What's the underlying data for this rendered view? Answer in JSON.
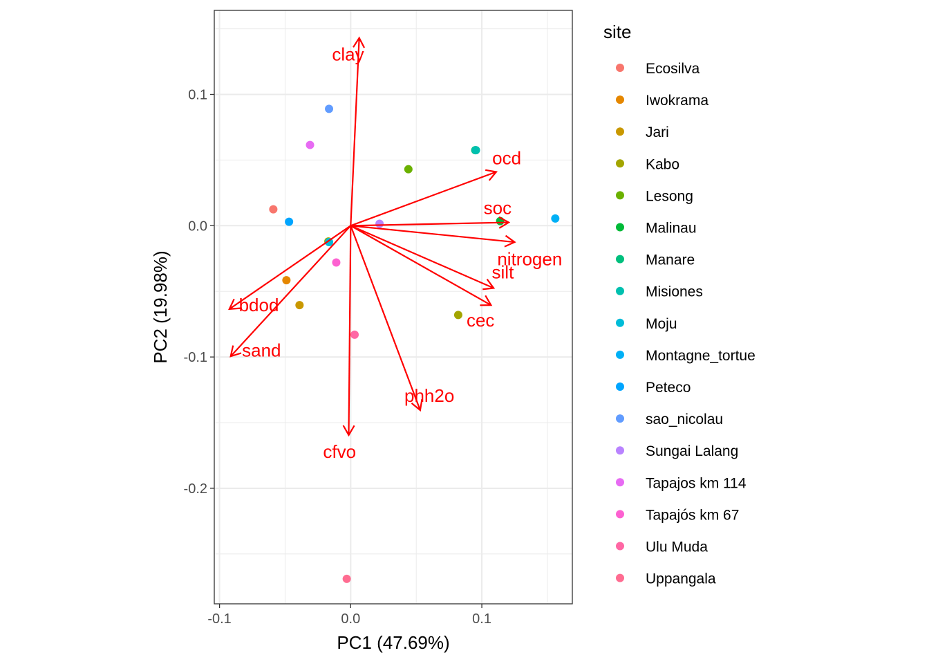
{
  "chart_data": {
    "type": "scatter",
    "subtype": "pca-biplot",
    "xlabel": "PC1 (47.69%)",
    "ylabel": "PC2 (19.98%)",
    "xlim": [
      -0.104,
      0.169
    ],
    "ylim": [
      -0.288,
      0.164
    ],
    "x_ticks": [
      {
        "value": -0.1,
        "label": "-0.1"
      },
      {
        "value": 0.0,
        "label": "0.0"
      },
      {
        "value": 0.1,
        "label": "0.1"
      }
    ],
    "y_ticks": [
      {
        "value": 0.1,
        "label": "0.1"
      },
      {
        "value": 0.0,
        "label": "0.0"
      },
      {
        "value": -0.1,
        "label": "-0.1"
      },
      {
        "value": -0.2,
        "label": "-0.2"
      }
    ],
    "grid": true,
    "legend": {
      "title": "site",
      "position": "right",
      "entries": [
        {
          "name": "Ecosilva",
          "color": "#F8766D"
        },
        {
          "name": "Iwokrama",
          "color": "#E58700"
        },
        {
          "name": "Jari",
          "color": "#C99800"
        },
        {
          "name": "Kabo",
          "color": "#A3A500"
        },
        {
          "name": "Lesong",
          "color": "#6BB100"
        },
        {
          "name": "Malinau",
          "color": "#00BA38"
        },
        {
          "name": "Manare",
          "color": "#00BF7D"
        },
        {
          "name": "Misiones",
          "color": "#00C0AF"
        },
        {
          "name": "Moju",
          "color": "#00BCD8"
        },
        {
          "name": "Montagne_tortue",
          "color": "#00B0F6"
        },
        {
          "name": "Peteco",
          "color": "#00A5FF"
        },
        {
          "name": "sao_nicolau",
          "color": "#619CFF"
        },
        {
          "name": "Sungai Lalang",
          "color": "#B983FF"
        },
        {
          "name": "Tapajos km 114",
          "color": "#E76BF3"
        },
        {
          "name": "Tapajós km 67",
          "color": "#FD61D1"
        },
        {
          "name": "Ulu Muda",
          "color": "#FF67A4"
        },
        {
          "name": "Uppangala",
          "color": "#FF6C91"
        }
      ]
    },
    "points": [
      {
        "site": "Ecosilva",
        "color": "#F8766D",
        "x": -0.059,
        "y": 0.0125
      },
      {
        "site": "Iwokrama",
        "color": "#E58700",
        "x": -0.049,
        "y": -0.0415
      },
      {
        "site": "Jari",
        "color": "#C99800",
        "x": -0.039,
        "y": -0.0605
      },
      {
        "site": "Kabo",
        "color": "#A3A500",
        "x": -0.017,
        "y": -0.012
      },
      {
        "site": "Kabo",
        "color": "#A3A500",
        "x": 0.082,
        "y": -0.068
      },
      {
        "site": "Lesong",
        "color": "#6BB100",
        "x": 0.044,
        "y": 0.043
      },
      {
        "site": "Malinau",
        "color": "#00BA38",
        "x": 0.114,
        "y": 0.0035
      },
      {
        "site": "Manare",
        "color": "#00BF7D",
        "x": 0.095,
        "y": 0.0575
      },
      {
        "site": "Misiones",
        "color": "#00C0AF",
        "x": 0.0955,
        "y": 0.0575
      },
      {
        "site": "Moju",
        "color": "#00BCD8",
        "x": -0.0165,
        "y": -0.0125
      },
      {
        "site": "Montagne_tortue",
        "color": "#00B0F6",
        "x": 0.156,
        "y": 0.0055
      },
      {
        "site": "Peteco",
        "color": "#00A5FF",
        "x": -0.047,
        "y": 0.003
      },
      {
        "site": "sao_nicolau",
        "color": "#619CFF",
        "x": -0.0165,
        "y": 0.089
      },
      {
        "site": "Sungai Lalang",
        "color": "#B983FF",
        "x": 0.022,
        "y": 0.0015
      },
      {
        "site": "Tapajos km 114",
        "color": "#E76BF3",
        "x": -0.031,
        "y": 0.0615
      },
      {
        "site": "Tapajós km 67",
        "color": "#FD61D1",
        "x": -0.011,
        "y": -0.028
      },
      {
        "site": "Ulu Muda",
        "color": "#FF67A4",
        "x": 0.003,
        "y": -0.083
      },
      {
        "site": "Uppangala",
        "color": "#FF6C91",
        "x": -0.003,
        "y": -0.269
      }
    ],
    "arrow_color": "#FF0000",
    "arrows": [
      {
        "name": "clay",
        "x": 0.0065,
        "y": 0.143,
        "label_x": -0.002,
        "label_y": 0.1305
      },
      {
        "name": "ocd",
        "x": 0.111,
        "y": 0.041,
        "label_x": 0.119,
        "label_y": 0.0515
      },
      {
        "name": "soc",
        "x": 0.1205,
        "y": 0.0025,
        "label_x": 0.112,
        "label_y": 0.0135
      },
      {
        "name": "nitrogen",
        "x": 0.125,
        "y": -0.0125,
        "label_x": 0.1365,
        "label_y": -0.0255
      },
      {
        "name": "silt",
        "x": 0.109,
        "y": -0.0475,
        "label_x": 0.116,
        "label_y": -0.0355
      },
      {
        "name": "cec",
        "x": 0.107,
        "y": -0.0605,
        "label_x": 0.099,
        "label_y": -0.072
      },
      {
        "name": "phh2o",
        "x": 0.053,
        "y": -0.1405,
        "label_x": 0.06,
        "label_y": -0.1295
      },
      {
        "name": "cfvo",
        "x": -0.0015,
        "y": -0.1595,
        "label_x": -0.0085,
        "label_y": -0.172
      },
      {
        "name": "bdod",
        "x": -0.0925,
        "y": -0.0635,
        "label_x": -0.07,
        "label_y": -0.0605
      },
      {
        "name": "sand",
        "x": -0.0915,
        "y": -0.0995,
        "label_x": -0.068,
        "label_y": -0.095
      }
    ]
  }
}
